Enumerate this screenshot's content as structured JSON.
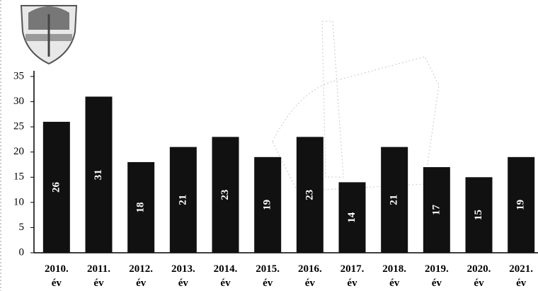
{
  "chart_data": {
    "type": "bar",
    "categories": [
      "2010. év",
      "2011. év",
      "2012. év",
      "2013. év",
      "2014. év",
      "2015. év",
      "2016. év",
      "2017. év",
      "2018. év",
      "2019. év",
      "2020. év",
      "2021. év"
    ],
    "values": [
      26,
      31,
      18,
      21,
      23,
      19,
      23,
      14,
      21,
      17,
      15,
      19
    ],
    "color": "#111111",
    "ylim": [
      0,
      35
    ],
    "yticks": [
      0,
      5,
      10,
      15,
      20,
      25,
      30,
      35
    ]
  }
}
